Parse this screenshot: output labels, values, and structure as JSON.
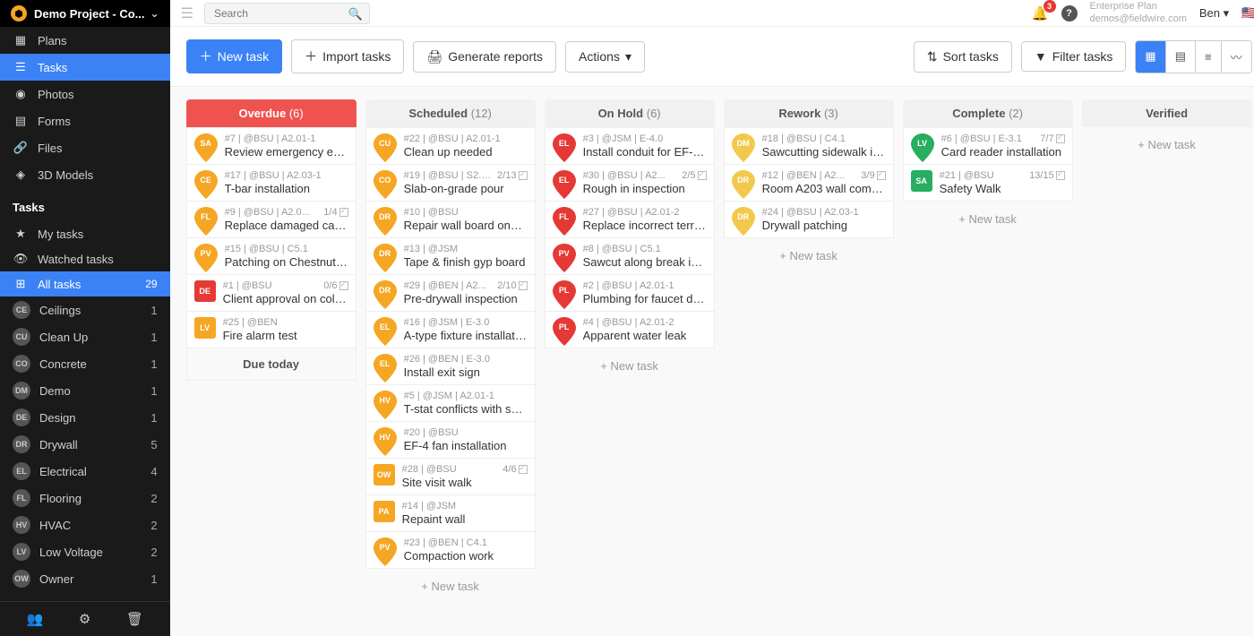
{
  "project": {
    "name": "Demo Project - Co..."
  },
  "search": {
    "placeholder": "Search"
  },
  "nav": [
    {
      "icon": "▦",
      "label": "Plans"
    },
    {
      "icon": "☰",
      "label": "Tasks",
      "active": true
    },
    {
      "icon": "◉",
      "label": "Photos"
    },
    {
      "icon": "▤",
      "label": "Forms"
    },
    {
      "icon": "🔗",
      "label": "Files"
    },
    {
      "icon": "◈",
      "label": "3D Models"
    }
  ],
  "tasks_section": {
    "title": "Tasks"
  },
  "filters": [
    {
      "icon": "★",
      "label": "My tasks"
    },
    {
      "icon": "👁",
      "label": "Watched tasks"
    },
    {
      "icon": "⊞",
      "label": "All tasks",
      "count": 29,
      "active": true
    }
  ],
  "categories": [
    {
      "code": "CE",
      "label": "Ceilings",
      "count": 1
    },
    {
      "code": "CU",
      "label": "Clean Up",
      "count": 1
    },
    {
      "code": "CO",
      "label": "Concrete",
      "count": 1
    },
    {
      "code": "DM",
      "label": "Demo",
      "count": 1
    },
    {
      "code": "DE",
      "label": "Design",
      "count": 1
    },
    {
      "code": "DR",
      "label": "Drywall",
      "count": 5
    },
    {
      "code": "EL",
      "label": "Electrical",
      "count": 4
    },
    {
      "code": "FL",
      "label": "Flooring",
      "count": 2
    },
    {
      "code": "HV",
      "label": "HVAC",
      "count": 2
    },
    {
      "code": "LV",
      "label": "Low Voltage",
      "count": 2
    },
    {
      "code": "OW",
      "label": "Owner",
      "count": 1
    }
  ],
  "topbar": {
    "notif_count": "3",
    "plan_title": "Enterprise Plan",
    "plan_email": "demos@fieldwire.com",
    "user": "Ben"
  },
  "toolbar": {
    "new_task": "New task",
    "import": "Import tasks",
    "generate": "Generate reports",
    "actions": "Actions",
    "sort": "Sort tasks",
    "filter": "Filter tasks"
  },
  "colors": {
    "orange": "#f5a623",
    "red": "#e53935",
    "yellow": "#f2c94c",
    "green": "#27ae60"
  },
  "columns": [
    {
      "title": "Overdue",
      "count": "(6)",
      "header_class": "overdue",
      "cards": [
        {
          "code": "SA",
          "color": "#f5a623",
          "shape": "pin",
          "meta": "#7 | @BSU | A2.01-1",
          "title": "Review emergency egre..."
        },
        {
          "code": "CE",
          "color": "#f5a623",
          "shape": "pin",
          "meta": "#17 | @BSU | A2.03-1",
          "title": "T-bar installation"
        },
        {
          "code": "FL",
          "color": "#f5a623",
          "shape": "pin",
          "meta": "#9 | @BSU | A2.0...",
          "right": "1/4",
          "check": true,
          "title": "Replace damaged carpe..."
        },
        {
          "code": "PV",
          "color": "#f5a623",
          "shape": "pin",
          "meta": "#15 | @BSU | C5.1",
          "title": "Patching on Chestnut St..."
        },
        {
          "code": "DE",
          "color": "#e53935",
          "shape": "square",
          "meta": "#1 | @BSU",
          "right": "0/6",
          "check": true,
          "title": "Client approval on color ..."
        },
        {
          "code": "LV",
          "color": "#f5a623",
          "shape": "square",
          "meta": "#25 | @BEN",
          "title": "Fire alarm test"
        }
      ],
      "footer": "Due today"
    },
    {
      "title": "Scheduled",
      "count": "(12)",
      "cards": [
        {
          "code": "CU",
          "color": "#f5a623",
          "shape": "pin",
          "meta": "#22 | @BSU | A2.01-1",
          "title": "Clean up needed"
        },
        {
          "code": "CO",
          "color": "#f5a623",
          "shape": "pin",
          "meta": "#19 | @BSU | S2.0...",
          "right": "2/13",
          "check": true,
          "title": "Slab-on-grade pour"
        },
        {
          "code": "DR",
          "color": "#f5a623",
          "shape": "pin",
          "meta": "#10 | @BSU",
          "title": "Repair wall board once t..."
        },
        {
          "code": "DR",
          "color": "#f5a623",
          "shape": "pin",
          "meta": "#13 | @JSM",
          "title": "Tape & finish gyp board"
        },
        {
          "code": "DR",
          "color": "#f5a623",
          "shape": "pin",
          "meta": "#29 | @BEN | A2...",
          "right": "2/10",
          "check": true,
          "title": "Pre-drywall inspection"
        },
        {
          "code": "EL",
          "color": "#f5a623",
          "shape": "pin",
          "meta": "#16 | @JSM | E-3.0",
          "title": "A-type fixture installation"
        },
        {
          "code": "EL",
          "color": "#f5a623",
          "shape": "pin",
          "meta": "#26 | @BEN | E-3.0",
          "title": "Install exit sign"
        },
        {
          "code": "HV",
          "color": "#f5a623",
          "shape": "pin",
          "meta": "#5 | @JSM | A2.01-1",
          "title": "T-stat conflicts with shel..."
        },
        {
          "code": "HV",
          "color": "#f5a623",
          "shape": "pin",
          "meta": "#20 | @BSU",
          "title": "EF-4 fan installation"
        },
        {
          "code": "OW",
          "color": "#f5a623",
          "shape": "square",
          "meta": "#28 | @BSU",
          "right": "4/6",
          "check": true,
          "title": "Site visit walk"
        },
        {
          "code": "PA",
          "color": "#f5a623",
          "shape": "square",
          "meta": "#14 | @JSM",
          "title": "Repaint wall"
        },
        {
          "code": "PV",
          "color": "#f5a623",
          "shape": "pin",
          "meta": "#23 | @BEN | C4.1",
          "title": "Compaction work"
        }
      ],
      "new_task": "+ New task"
    },
    {
      "title": "On Hold",
      "count": "(6)",
      "cards": [
        {
          "code": "EL",
          "color": "#e53935",
          "shape": "pin",
          "meta": "#3 | @JSM | E-4.0",
          "title": "Install conduit for EF-4 f..."
        },
        {
          "code": "EL",
          "color": "#e53935",
          "shape": "pin",
          "meta": "#30 | @BSU | A2...",
          "right": "2/5",
          "check": true,
          "title": "Rough in inspection"
        },
        {
          "code": "FL",
          "color": "#e53935",
          "shape": "pin",
          "meta": "#27 | @BSU | A2.01-2",
          "title": "Replace incorrect terraz..."
        },
        {
          "code": "PV",
          "color": "#e53935",
          "shape": "pin",
          "meta": "#8 | @BSU | C5.1",
          "title": "Sawcut along break in as..."
        },
        {
          "code": "PL",
          "color": "#e53935",
          "shape": "pin",
          "meta": "#2 | @BSU | A2.01-1",
          "title": "Plumbing for faucet doe..."
        },
        {
          "code": "PL",
          "color": "#e53935",
          "shape": "pin",
          "meta": "#4 | @BSU | A2.01-2",
          "title": "Apparent water leak"
        }
      ],
      "new_task": "+ New task"
    },
    {
      "title": "Rework",
      "count": "(3)",
      "cards": [
        {
          "code": "DM",
          "color": "#f2c94c",
          "shape": "pin",
          "meta": "#18 | @BSU | C4.1",
          "title": "Sawcutting sidewalk in ..."
        },
        {
          "code": "DR",
          "color": "#f2c94c",
          "shape": "pin",
          "meta": "#12 | @BEN | A2...",
          "right": "3/9",
          "check": true,
          "title": "Room A203 wall comple..."
        },
        {
          "code": "DR",
          "color": "#f2c94c",
          "shape": "pin",
          "meta": "#24 | @BSU | A2.03-1",
          "title": "Drywall patching"
        }
      ],
      "new_task": "+ New task"
    },
    {
      "title": "Complete",
      "count": "(2)",
      "cards": [
        {
          "code": "LV",
          "color": "#27ae60",
          "shape": "pin",
          "meta": "#6 | @BSU | E-3.1",
          "right": "7/7",
          "check": true,
          "title": "Card reader installation"
        },
        {
          "code": "SA",
          "color": "#27ae60",
          "shape": "square",
          "meta": "#21 | @BSU",
          "right": "13/15",
          "check": true,
          "title": "Safety Walk"
        }
      ],
      "new_task": "+ New task"
    },
    {
      "title": "Verified",
      "count": "",
      "cards": [],
      "new_task": "+ New task"
    }
  ]
}
